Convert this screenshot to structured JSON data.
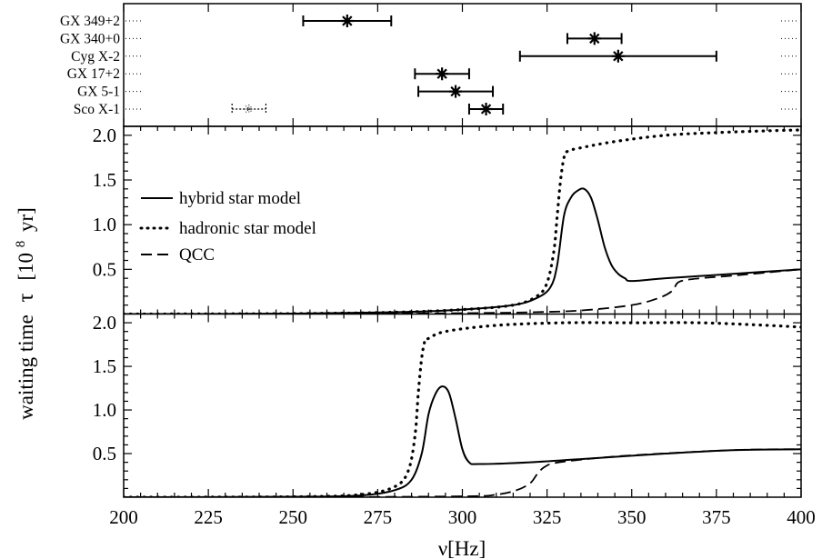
{
  "chart_data": {
    "type": "line",
    "xlabel": "ν[Hz]",
    "ylabel": "waiting time",
    "ylabel_symbol": "τ",
    "ylabel_unit_open": "[10",
    "ylabel_unit_exp": "8",
    "ylabel_unit_close": "yr]",
    "xlim": [
      200,
      400
    ],
    "x_ticks": [
      "200",
      "225",
      "250",
      "275",
      "300",
      "325",
      "350",
      "375",
      "400"
    ],
    "y_ticks": [
      "0.5",
      "1.0",
      "1.5",
      "2.0"
    ],
    "ylim": [
      0,
      2.1
    ],
    "grid": false,
    "legend_position": "left",
    "legend": [
      {
        "label": "hybrid star model",
        "style": "solid"
      },
      {
        "label": "hadronic star model",
        "style": "dotted"
      },
      {
        "label": "QCC",
        "style": "dashed"
      }
    ],
    "sources": [
      {
        "name": "GX 349+2",
        "value": 266,
        "low": 253,
        "high": 279
      },
      {
        "name": "GX 340+0",
        "value": 339,
        "low": 331,
        "high": 347
      },
      {
        "name": "Cyg X-2",
        "value": 346,
        "low": 317,
        "high": 375
      },
      {
        "name": "GX 17+2",
        "value": 294,
        "low": 286,
        "high": 302
      },
      {
        "name": "GX 5-1",
        "value": 298,
        "low": 287,
        "high": 309
      },
      {
        "name": "Sco X-1",
        "value": 307,
        "low": 302,
        "high": 312
      }
    ],
    "sco_x1_secondary": {
      "value": 237,
      "low": 232,
      "high": 242
    },
    "panels": [
      {
        "name": "upper",
        "series": [
          {
            "name": "hybrid star model",
            "style": "solid",
            "x": [
              200,
              250,
              280,
              300,
              315,
              322,
              326,
              328,
              330,
              332,
              334,
              336,
              338,
              340,
              342,
              344,
              346,
              348,
              350,
              360,
              380,
              400
            ],
            "y": [
              0.0,
              0.005,
              0.02,
              0.05,
              0.1,
              0.18,
              0.3,
              0.55,
              1.1,
              1.3,
              1.38,
              1.4,
              1.3,
              1.05,
              0.75,
              0.55,
              0.45,
              0.4,
              0.37,
              0.4,
              0.45,
              0.5
            ]
          },
          {
            "name": "hadronic star model",
            "style": "dotted",
            "x": [
              200,
              250,
              280,
              300,
              315,
              322,
              325,
              327,
              328,
              329,
              330,
              331,
              335,
              345,
              360,
              375,
              390,
              400
            ],
            "y": [
              0.0,
              0.005,
              0.02,
              0.05,
              0.1,
              0.2,
              0.35,
              0.7,
              1.1,
              1.5,
              1.75,
              1.82,
              1.86,
              1.93,
              2.0,
              2.03,
              2.05,
              2.06
            ]
          },
          {
            "name": "QCC",
            "style": "dashed",
            "x": [
              200,
              250,
              300,
              320,
              335,
              350,
              358,
              362,
              364,
              370,
              380,
              400
            ],
            "y": [
              0.0,
              0.0,
              0.01,
              0.02,
              0.04,
              0.1,
              0.18,
              0.26,
              0.36,
              0.4,
              0.43,
              0.5
            ]
          }
        ]
      },
      {
        "name": "lower",
        "series": [
          {
            "name": "hybrid star model",
            "style": "solid",
            "x": [
              200,
              250,
              270,
              280,
              285,
              288,
              290,
              292,
              294,
              296,
              298,
              300,
              302,
              305,
              320,
              340,
              360,
              380,
              400
            ],
            "y": [
              0.0,
              0.005,
              0.02,
              0.08,
              0.2,
              0.5,
              0.95,
              1.18,
              1.27,
              1.2,
              0.9,
              0.55,
              0.4,
              0.38,
              0.4,
              0.45,
              0.5,
              0.54,
              0.55
            ]
          },
          {
            "name": "hadronic star model",
            "style": "dotted",
            "x": [
              200,
              250,
              270,
              280,
              284,
              286,
              287,
              288,
              289,
              290,
              295,
              310,
              330,
              350,
              370,
              390,
              400
            ],
            "y": [
              0.0,
              0.005,
              0.03,
              0.12,
              0.3,
              0.7,
              1.2,
              1.6,
              1.8,
              1.82,
              1.9,
              1.97,
              2.0,
              2.0,
              2.0,
              1.97,
              1.95
            ]
          },
          {
            "name": "QCC",
            "style": "dashed",
            "x": [
              200,
              250,
              300,
              310,
              316,
              320,
              322,
              324,
              327,
              335,
              350,
              380,
              400
            ],
            "y": [
              0.0,
              0.0,
              0.01,
              0.03,
              0.08,
              0.16,
              0.26,
              0.34,
              0.39,
              0.43,
              0.48,
              0.54,
              0.55
            ]
          }
        ]
      }
    ]
  }
}
